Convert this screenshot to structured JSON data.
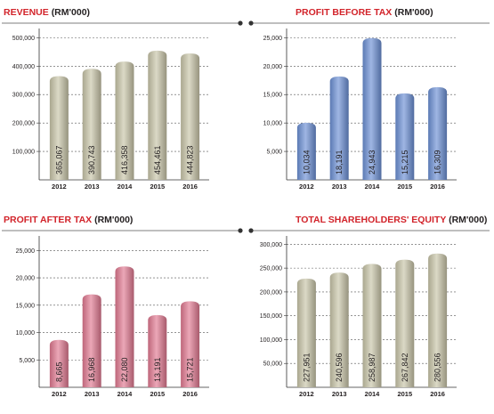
{
  "chart_data": [
    {
      "type": "bar",
      "title": "REVENUE",
      "title_unit": "(RM'000)",
      "categories": [
        "2012",
        "2013",
        "2014",
        "2015",
        "2016"
      ],
      "values": [
        365067,
        390743,
        416358,
        454461,
        444823
      ],
      "value_labels": [
        "365,067",
        "390,743",
        "416,358",
        "454,461",
        "444,823"
      ],
      "yticks": [
        100000,
        200000,
        300000,
        400000,
        500000
      ],
      "ytick_labels": [
        "100,000",
        "200,000",
        "300,000",
        "400,000",
        "500,000"
      ],
      "ylim": [
        0,
        520000
      ],
      "grid": true,
      "bar_color": "#c8c4a8",
      "rule_side": "right"
    },
    {
      "type": "bar",
      "title": "PROFIT BEFORE TAX",
      "title_unit": "(RM'000)",
      "categories": [
        "2012",
        "2013",
        "2014",
        "2015",
        "2016"
      ],
      "values": [
        10034,
        18191,
        24943,
        15215,
        16309
      ],
      "value_labels": [
        "10,034",
        "18,191",
        "24,943",
        "15,215",
        "16,309"
      ],
      "yticks": [
        5000,
        10000,
        15000,
        20000,
        25000
      ],
      "ytick_labels": [
        "5,000",
        "10,000",
        "15,000",
        "20,000",
        "25,000"
      ],
      "ylim": [
        0,
        26000
      ],
      "grid": true,
      "bar_color": "#6b8fd4",
      "rule_side": "left"
    },
    {
      "type": "bar",
      "title": "PROFIT AFTER TAX",
      "title_unit": "(RM'000)",
      "categories": [
        "2012",
        "2013",
        "2014",
        "2015",
        "2016"
      ],
      "values": [
        8665,
        16968,
        22080,
        13191,
        15721
      ],
      "value_labels": [
        "8,665",
        "16,968",
        "22,080",
        "13,191",
        "15,721"
      ],
      "yticks": [
        5000,
        10000,
        15000,
        20000,
        25000
      ],
      "ytick_labels": [
        "5,000",
        "10,000",
        "15,000",
        "20,000",
        "25,000"
      ],
      "ylim": [
        0,
        27000
      ],
      "grid": true,
      "bar_color": "#e07890",
      "rule_side": "right"
    },
    {
      "type": "bar",
      "title": "TOTAL SHAREHOLDERS' EQUITY",
      "title_unit": "(RM'000)",
      "categories": [
        "2012",
        "2013",
        "2014",
        "2015",
        "2016"
      ],
      "values": [
        227951,
        240596,
        258987,
        267842,
        280556
      ],
      "value_labels": [
        "227,951",
        "240,596",
        "258,987",
        "267,842",
        "280,556"
      ],
      "yticks": [
        50000,
        100000,
        150000,
        200000,
        250000,
        300000
      ],
      "ytick_labels": [
        "50,000",
        "100,000",
        "150,000",
        "200,000",
        "250,000",
        "300,000"
      ],
      "ylim": [
        0,
        310000
      ],
      "grid": true,
      "bar_color": "#c8c4a8",
      "rule_side": "left"
    }
  ]
}
